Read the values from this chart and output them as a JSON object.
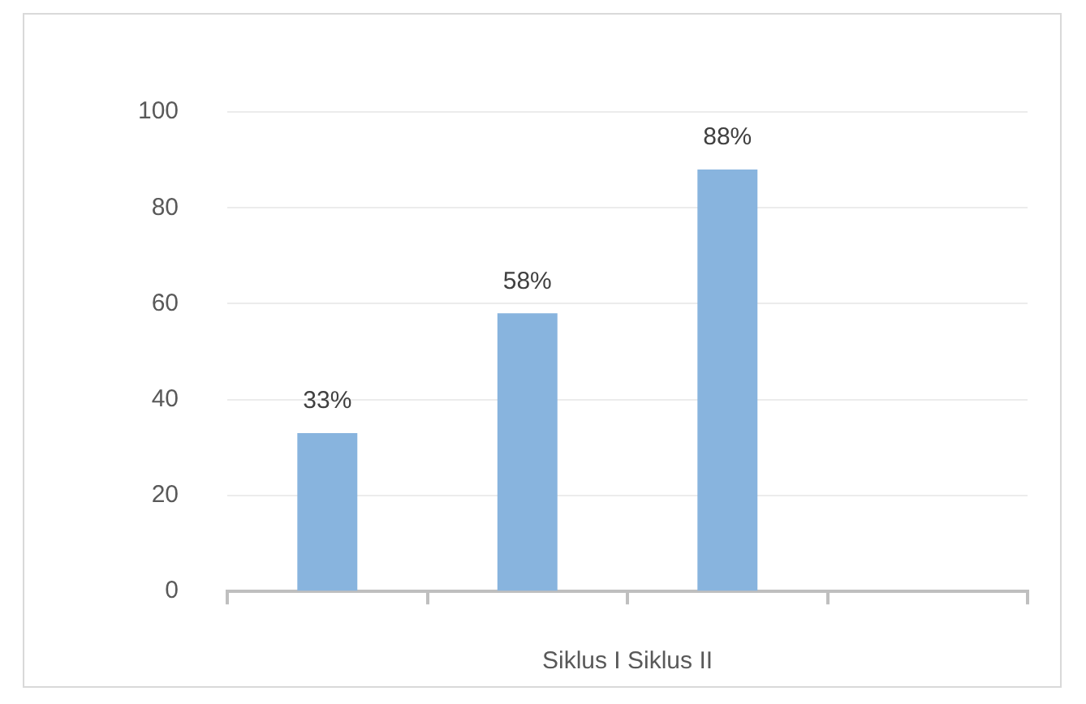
{
  "chart_data": {
    "type": "bar",
    "xlabel": "Siklus I Siklus II",
    "categories": [
      null,
      null,
      null,
      null
    ],
    "values": [
      33,
      58,
      88,
      null
    ],
    "color": "#88b4de",
    "value_labels": [
      "33%",
      "58%",
      "88%",
      null
    ],
    "ylim": [
      0,
      100
    ],
    "yticks": [
      0,
      20,
      40,
      60,
      80,
      100
    ],
    "grid": "y",
    "legend": false
  }
}
